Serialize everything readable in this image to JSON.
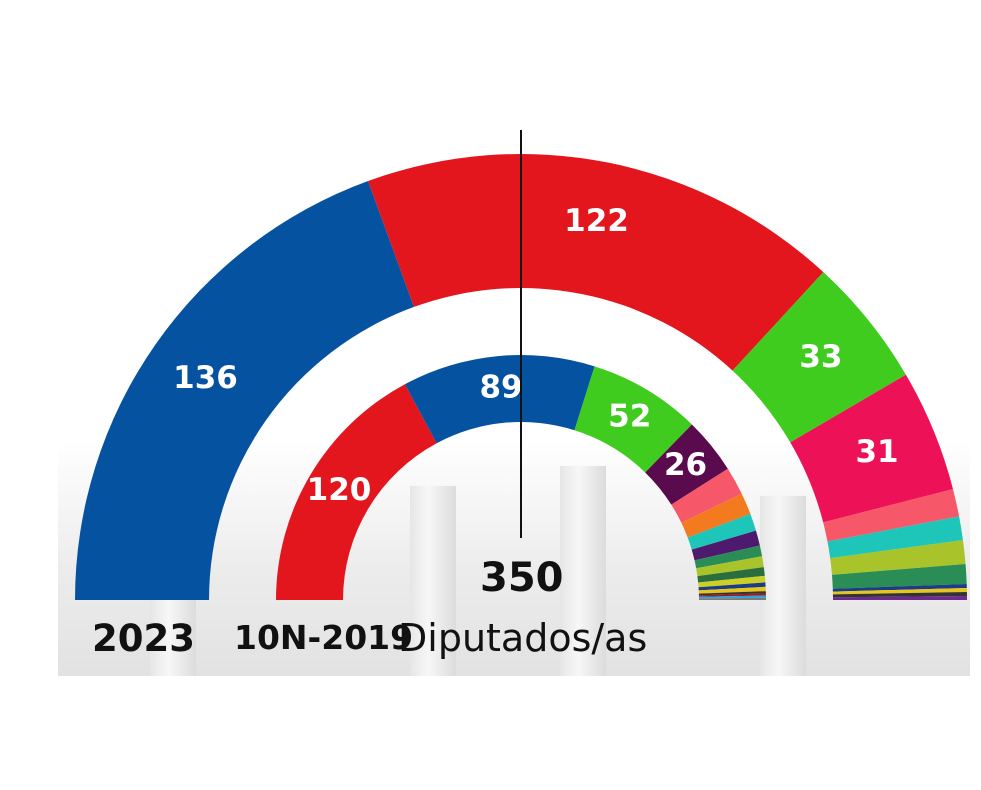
{
  "total_label": "350",
  "captions": {
    "outer_year": "2023",
    "inner_year": "10N-2019",
    "unit": "Diputados/as"
  },
  "colors": {
    "pp": "#0552a0",
    "psoe": "#e3151d",
    "vox": "#3fcc1e",
    "sumar": "#ed1158",
    "podemos": "#5a0b4d"
  },
  "chart_data": {
    "type": "pie",
    "subtype": "parliament-hemicycle",
    "total_seats": 350,
    "rings": [
      {
        "name": "2023",
        "segments": [
          {
            "label": "136",
            "value": 136,
            "color": "#0552a0"
          },
          {
            "label": "122",
            "value": 122,
            "color": "#e3151d"
          },
          {
            "label": "33",
            "value": 33,
            "color": "#3fcc1e"
          },
          {
            "label": "31",
            "value": 31,
            "color": "#ed1158"
          },
          {
            "label": "",
            "value": 7,
            "color": "#f6586a"
          },
          {
            "label": "",
            "value": 6,
            "color": "#1dc6b8"
          },
          {
            "label": "",
            "value": 6,
            "color": "#a8c42a"
          },
          {
            "label": "",
            "value": 5,
            "color": "#2a8d55"
          },
          {
            "label": "",
            "value": 1,
            "color": "#1d3c86"
          },
          {
            "label": "",
            "value": 1,
            "color": "#e6c61c"
          },
          {
            "label": "",
            "value": 1,
            "color": "#333333"
          },
          {
            "label": "",
            "value": 1,
            "color": "#6e2a8c"
          }
        ]
      },
      {
        "name": "10N-2019",
        "segments": [
          {
            "label": "120",
            "value": 120,
            "color": "#e3151d"
          },
          {
            "label": "89",
            "value": 89,
            "color": "#0552a0"
          },
          {
            "label": "52",
            "value": 52,
            "color": "#3fcc1e"
          },
          {
            "label": "26",
            "value": 26,
            "color": "#5a0b4d"
          },
          {
            "label": "",
            "value": 13,
            "color": "#f6586a"
          },
          {
            "label": "",
            "value": 10,
            "color": "#f47a20"
          },
          {
            "label": "",
            "value": 8,
            "color": "#1dc6b8"
          },
          {
            "label": "",
            "value": 7,
            "color": "#4e1a6e"
          },
          {
            "label": "",
            "value": 5,
            "color": "#2a8d55"
          },
          {
            "label": "",
            "value": 5,
            "color": "#a8c42a"
          },
          {
            "label": "",
            "value": 4,
            "color": "#2a6e3d"
          },
          {
            "label": "",
            "value": 3,
            "color": "#c9d126"
          },
          {
            "label": "",
            "value": 2,
            "color": "#1d3c86"
          },
          {
            "label": "",
            "value": 2,
            "color": "#e6c61c"
          },
          {
            "label": "",
            "value": 1,
            "color": "#333333"
          },
          {
            "label": "",
            "value": 1,
            "color": "#9b1e1e"
          },
          {
            "label": "",
            "value": 1,
            "color": "#2aa6df"
          },
          {
            "label": "",
            "value": 1,
            "color": "#7a7a7a"
          }
        ]
      }
    ]
  }
}
